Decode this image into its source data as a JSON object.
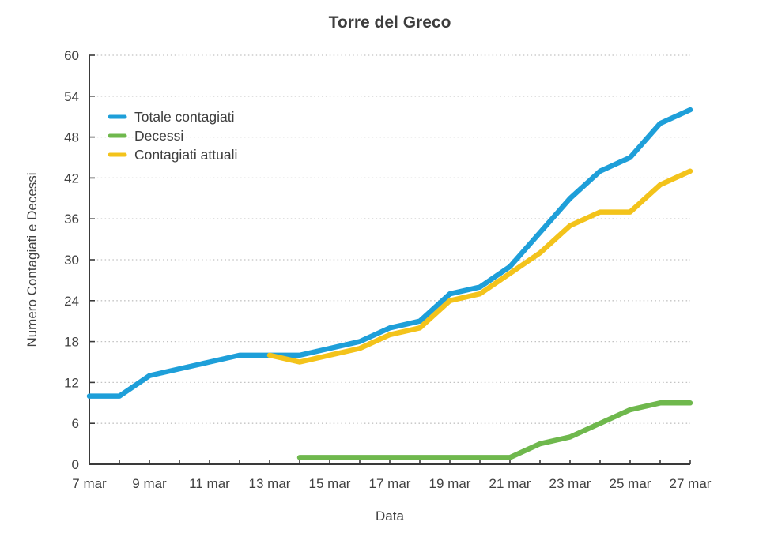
{
  "title": "Torre del Greco",
  "colors": {
    "blue": "#1e9fd9",
    "green": "#6fb84d",
    "yellow": "#f3c31b",
    "text": "#414141",
    "title_text": "#3d3d3d",
    "grid": "#c2c2c2",
    "axis": "#3a3a3a"
  },
  "chart_data": {
    "type": "line",
    "title": "Torre del Greco",
    "xlabel": "Data",
    "ylabel": "Numero Contagiati e Decessi",
    "categories": [
      "7 mar",
      "8 mar",
      "9 mar",
      "10 mar",
      "11 mar",
      "12 mar",
      "13 mar",
      "14 mar",
      "15 mar",
      "16 mar",
      "17 mar",
      "18 mar",
      "19 mar",
      "20 mar",
      "21 mar",
      "22 mar",
      "23 mar",
      "24 mar",
      "25 mar",
      "26 mar",
      "27 mar"
    ],
    "x_tick_labels": [
      "7 mar",
      "9 mar",
      "11 mar",
      "13 mar",
      "15 mar",
      "17 mar",
      "19 mar",
      "21 mar",
      "23 mar",
      "25 mar",
      "27 mar"
    ],
    "y_tick_values": [
      0,
      6,
      12,
      18,
      24,
      30,
      36,
      42,
      48,
      54,
      60
    ],
    "ylim": [
      0,
      60
    ],
    "grid": "horizontal-dotted",
    "legend_position": "top-left-inside",
    "series": [
      {
        "name": "Totale contagiati",
        "color": "#1e9fd9",
        "start_index": 0,
        "values": [
          10,
          10,
          13,
          14,
          15,
          16,
          16,
          16,
          17,
          18,
          20,
          21,
          25,
          26,
          29,
          34,
          39,
          43,
          45,
          50,
          52
        ]
      },
      {
        "name": "Decessi",
        "color": "#6fb84d",
        "start_index": 7,
        "values": [
          1,
          1,
          1,
          1,
          1,
          1,
          1,
          1,
          3,
          4,
          6,
          8,
          9,
          9
        ]
      },
      {
        "name": "Contagiati attuali",
        "color": "#f3c31b",
        "start_index": 6,
        "values": [
          16,
          15,
          16,
          17,
          19,
          20,
          24,
          25,
          28,
          31,
          35,
          37,
          37,
          41,
          43
        ]
      }
    ]
  }
}
